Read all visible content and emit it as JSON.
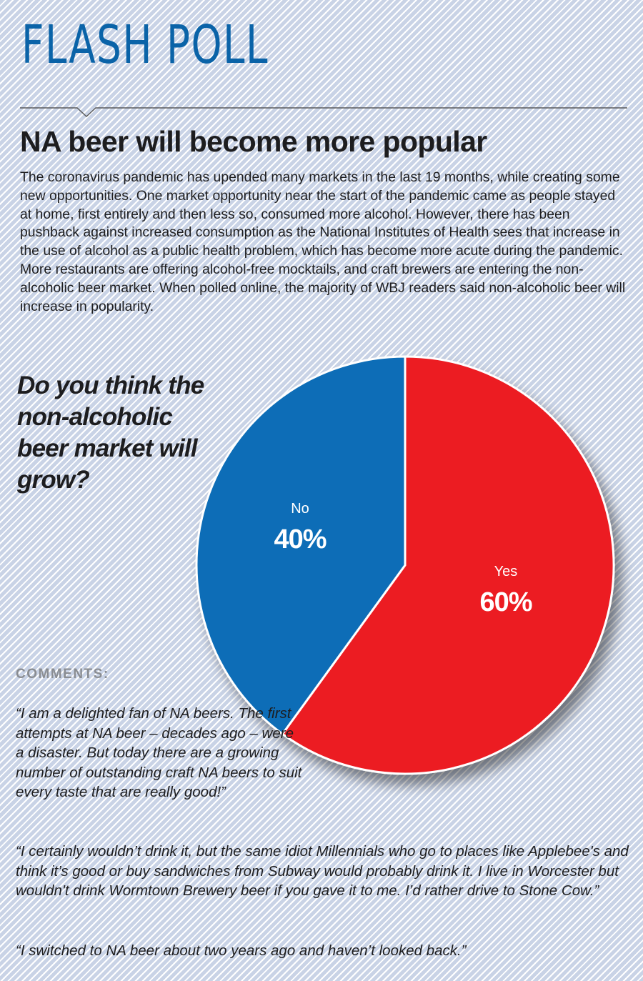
{
  "masthead": "FLASH POLL",
  "headline": "NA beer will become more popular",
  "intro": "The coronavirus pandemic has upended many markets in the last 19 months, while creating some new opportunities. One market opportunity near the start of the pandemic came as people stayed at home, first entirely and then less so, consumed more alcohol. However, there has been pushback against increased consumption as the National Institutes of Health sees that increase in the use of alcohol as a public health problem, which has become more acute during the pandemic. More restaurants are offering alcohol-free mocktails, and craft brewers are entering the non-alcoholic beer market. When polled online, the majority of WBJ readers said non-alcoholic beer will increase in popularity.",
  "chart_data": {
    "type": "pie",
    "title": "Do you think the non-alcoholic beer market will grow?",
    "slices": [
      {
        "label": "Yes",
        "value": 60,
        "display": "60%",
        "color": "#ec1c24"
      },
      {
        "label": "No",
        "value": 40,
        "display": "40%",
        "color": "#0a6db7"
      }
    ]
  },
  "comments": {
    "heading": "COMMENTS:",
    "items": [
      "“I am a delighted fan of NA beers. The first attempts at NA beer – decades ago – were a disaster. But today there are a growing number of outstanding craft NA beers to suit every taste that are really good!”",
      "“I certainly wouldn’t drink it, but the same idiot Millennials who go to places like Applebee's and think it’s good or buy sandwiches from Subway would probably drink it. I live in Worcester but wouldn't drink Wormtown Brewery beer if you gave it to me. I’d rather drive to Stone Cow.”",
      "“I switched to NA beer about two years ago and haven’t looked back.”"
    ]
  }
}
